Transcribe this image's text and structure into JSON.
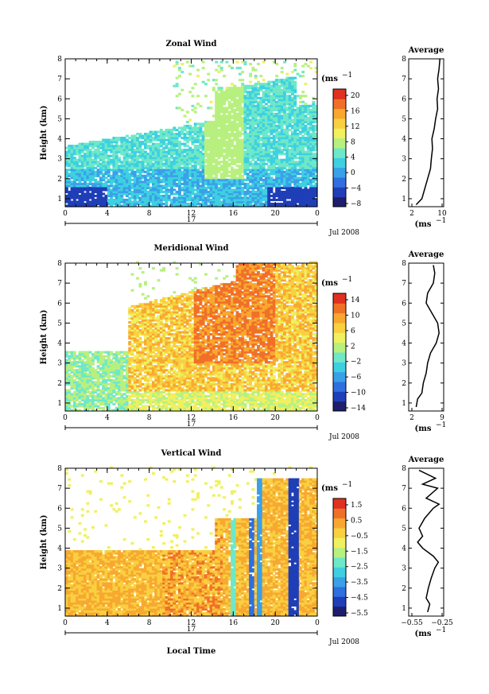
{
  "figure": {
    "bottom_label": "Local Time",
    "date_label": "Jul 2008",
    "day_label": "17",
    "y_label": "Height (km)",
    "unit_label": "(ms",
    "unit_sup": "−1",
    "avg_title": "Average",
    "avg_xlabel": "(ms",
    "avg_xlabel_sup": "−1",
    "x_ticks": [
      "0",
      "4",
      "8",
      "12",
      "16",
      "20",
      "0"
    ],
    "y_ticks": [
      "1",
      "2",
      "3",
      "4",
      "5",
      "6",
      "7",
      "8"
    ]
  },
  "colors": {
    "colormap": [
      "#1e1e6e",
      "#1f3fb8",
      "#2f6fe0",
      "#3aa0e8",
      "#3ed0e0",
      "#6fe8c8",
      "#b8f080",
      "#f0f060",
      "#f8d040",
      "#f8a830",
      "#f07028",
      "#e03020"
    ]
  },
  "chart_data": [
    {
      "type": "heatmap",
      "title": "Zonal Wind",
      "xlabel": "",
      "ylabel": "Height (km)",
      "xlim": [
        0,
        24
      ],
      "ylim": [
        0.6,
        8
      ],
      "colorbar_ticks": [
        "20",
        "16",
        "12",
        "8",
        "4",
        "0",
        "−4",
        "−8"
      ],
      "colorbar_range": [
        -10,
        22
      ],
      "pattern": "zonal",
      "average": {
        "title": "Average",
        "xticks": [
          "2",
          "10"
        ],
        "xlim": [
          0,
          10
        ],
        "profile": [
          [
            0.7,
            1.5
          ],
          [
            1.0,
            3.5
          ],
          [
            1.5,
            4.5
          ],
          [
            2.0,
            5.5
          ],
          [
            2.5,
            6.5
          ],
          [
            3.0,
            6.8
          ],
          [
            3.5,
            7.2
          ],
          [
            4.0,
            7.0
          ],
          [
            4.5,
            7.8
          ],
          [
            5.0,
            8.3
          ],
          [
            5.5,
            9.0
          ],
          [
            6.0,
            8.8
          ],
          [
            6.5,
            9.3
          ],
          [
            7.0,
            9.0
          ],
          [
            7.5,
            9.5
          ],
          [
            8.0,
            9.8
          ]
        ]
      }
    },
    {
      "type": "heatmap",
      "title": "Meridional Wind",
      "xlabel": "",
      "ylabel": "Height (km)",
      "xlim": [
        0,
        24
      ],
      "ylim": [
        0.6,
        8
      ],
      "colorbar_ticks": [
        "14",
        "10",
        "6",
        "2",
        "−2",
        "−6",
        "−10",
        "−14"
      ],
      "colorbar_range": [
        -16,
        16
      ],
      "pattern": "meridional",
      "average": {
        "title": "Average",
        "xticks": [
          "2",
          "9"
        ],
        "xlim": [
          0,
          10
        ],
        "profile": [
          [
            0.8,
            1.5
          ],
          [
            1.2,
            2.0
          ],
          [
            1.5,
            3.5
          ],
          [
            2.0,
            4.0
          ],
          [
            2.5,
            5.0
          ],
          [
            3.0,
            5.5
          ],
          [
            3.5,
            6.5
          ],
          [
            4.0,
            8.5
          ],
          [
            4.5,
            9.5
          ],
          [
            5.0,
            9.0
          ],
          [
            5.5,
            7.0
          ],
          [
            6.0,
            5.0
          ],
          [
            6.5,
            5.5
          ],
          [
            7.0,
            7.5
          ],
          [
            7.5,
            8.0
          ],
          [
            7.9,
            7.5
          ]
        ]
      }
    },
    {
      "type": "heatmap",
      "title": "Vertical Wind",
      "xlabel": "Local Time",
      "ylabel": "Height (km)",
      "xlim": [
        0,
        24
      ],
      "ylim": [
        0.6,
        8
      ],
      "colorbar_ticks": [
        "1.5",
        "0.5",
        "−0.5",
        "−1.5",
        "−2.5",
        "−3.5",
        "−4.5",
        "−5.5"
      ],
      "colorbar_range": [
        -6,
        2
      ],
      "pattern": "vertical",
      "average": {
        "title": "Average",
        "xticks": [
          "−0.55",
          "−0.25"
        ],
        "xlim": [
          -0.6,
          -0.2
        ],
        "profile": [
          [
            0.8,
            -0.38
          ],
          [
            1.2,
            -0.35
          ],
          [
            1.5,
            -0.4
          ],
          [
            2.0,
            -0.37
          ],
          [
            2.5,
            -0.33
          ],
          [
            3.0,
            -0.28
          ],
          [
            3.3,
            -0.23
          ],
          [
            3.6,
            -0.3
          ],
          [
            4.0,
            -0.45
          ],
          [
            4.3,
            -0.52
          ],
          [
            4.6,
            -0.45
          ],
          [
            5.0,
            -0.5
          ],
          [
            5.5,
            -0.42
          ],
          [
            6.0,
            -0.3
          ],
          [
            6.2,
            -0.22
          ],
          [
            6.5,
            -0.4
          ],
          [
            7.0,
            -0.24
          ],
          [
            7.2,
            -0.45
          ],
          [
            7.5,
            -0.27
          ],
          [
            7.9,
            -0.5
          ]
        ]
      }
    }
  ]
}
